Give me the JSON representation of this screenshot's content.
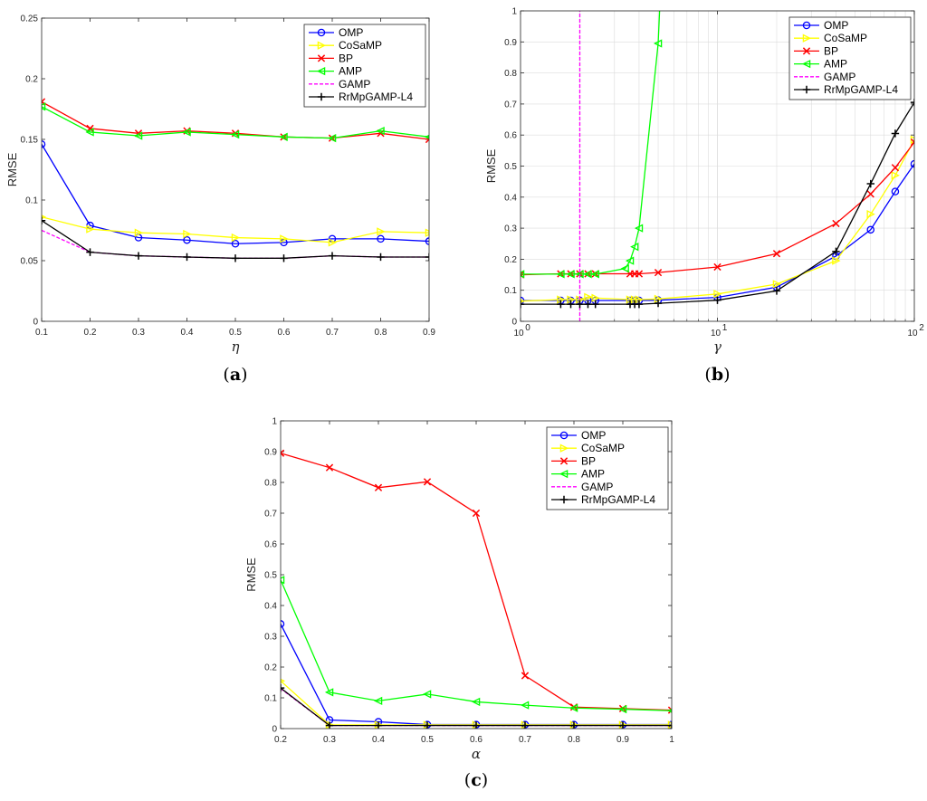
{
  "chart_data": [
    {
      "type": "line",
      "caption": {
        "open": "(",
        "letter": "a",
        "close": ")"
      },
      "xlabel": "η",
      "ylabel": "RMSE",
      "xscale": "linear",
      "xlim": [
        0.1,
        0.9
      ],
      "ylim": [
        0,
        0.25
      ],
      "xticks": [
        0.1,
        0.2,
        0.3,
        0.4,
        0.5,
        0.6,
        0.7,
        0.8,
        0.9
      ],
      "xtick_labels": [
        "0.1",
        "0.2",
        "0.3",
        "0.4",
        "0.5",
        "0.6",
        "0.7",
        "0.8",
        "0.9"
      ],
      "yticks": [
        0,
        0.05,
        0.1,
        0.15,
        0.2,
        0.25
      ],
      "ytick_labels": [
        "0",
        "0.05",
        "0.1",
        "0.15",
        "0.2",
        "0.25"
      ],
      "grid": false,
      "legend_position": "top-right",
      "x": [
        0.1,
        0.2,
        0.3,
        0.4,
        0.5,
        0.6,
        0.7,
        0.8,
        0.9
      ],
      "series": [
        {
          "name": "OMP",
          "color": "#0000ff",
          "marker": "circle",
          "values": [
            0.146,
            0.079,
            0.069,
            0.067,
            0.064,
            0.065,
            0.068,
            0.068,
            0.066
          ]
        },
        {
          "name": "CoSaMP",
          "color": "#ffff00",
          "marker": "triangle-right",
          "values": [
            0.086,
            0.076,
            0.073,
            0.072,
            0.069,
            0.068,
            0.065,
            0.074,
            0.073
          ]
        },
        {
          "name": "BP",
          "color": "#ff0000",
          "marker": "x",
          "values": [
            0.181,
            0.159,
            0.155,
            0.157,
            0.155,
            0.152,
            0.151,
            0.155,
            0.15
          ]
        },
        {
          "name": "AMP",
          "color": "#00ff00",
          "marker": "triangle-left",
          "values": [
            0.177,
            0.156,
            0.153,
            0.156,
            0.154,
            0.152,
            0.151,
            0.157,
            0.152
          ]
        },
        {
          "name": "GAMP",
          "color": "#ff00ff",
          "marker": "none",
          "dash": true,
          "values": [
            0.075,
            0.057,
            0.054,
            0.053,
            0.052,
            0.052,
            0.054,
            0.053,
            0.053
          ]
        },
        {
          "name": "RrMpGAMP-L4",
          "color": "#000000",
          "marker": "plus",
          "values": [
            0.083,
            0.057,
            0.054,
            0.053,
            0.052,
            0.052,
            0.054,
            0.053,
            0.053
          ]
        }
      ]
    },
    {
      "type": "line",
      "caption": {
        "open": "(",
        "letter": "b",
        "close": ")"
      },
      "xlabel": "γ",
      "ylabel": "RMSE",
      "xscale": "log",
      "xlim": [
        1,
        100
      ],
      "ylim": [
        0,
        1
      ],
      "xticks": [
        1,
        10,
        100
      ],
      "xtick_labels": [
        {
          "base": "10",
          "exp": "0"
        },
        {
          "base": "10",
          "exp": "1"
        },
        {
          "base": "10",
          "exp": "2"
        }
      ],
      "yticks": [
        0,
        0.1,
        0.2,
        0.3,
        0.4,
        0.5,
        0.6,
        0.7,
        0.8,
        0.9,
        1
      ],
      "ytick_labels": [
        "0",
        "0.1",
        "0.2",
        "0.3",
        "0.4",
        "0.5",
        "0.6",
        "0.7",
        "0.8",
        "0.9",
        "1"
      ],
      "grid": true,
      "legend_position": "top-right",
      "series": [
        {
          "name": "OMP",
          "color": "#0000ff",
          "marker": "circle",
          "x": [
            1,
            1.6,
            1.8,
            2.0,
            2.2,
            2.4,
            3.6,
            3.8,
            4.0,
            5.0,
            10,
            20,
            40,
            60,
            80,
            100
          ],
          "values": [
            0.067,
            0.067,
            0.067,
            0.067,
            0.067,
            0.067,
            0.067,
            0.067,
            0.067,
            0.068,
            0.077,
            0.11,
            0.21,
            0.295,
            0.418,
            0.507
          ]
        },
        {
          "name": "CoSaMP",
          "color": "#ffff00",
          "marker": "triangle-right",
          "x": [
            1,
            1.6,
            1.8,
            2.0,
            2.2,
            2.4,
            3.6,
            3.8,
            4.0,
            5.0,
            10,
            20,
            40,
            60,
            80,
            100
          ],
          "values": [
            0.065,
            0.07,
            0.07,
            0.07,
            0.078,
            0.075,
            0.07,
            0.07,
            0.07,
            0.072,
            0.088,
            0.12,
            0.195,
            0.345,
            0.47,
            0.585
          ]
        },
        {
          "name": "BP",
          "color": "#ff0000",
          "marker": "x",
          "x": [
            1,
            1.6,
            1.8,
            2.0,
            2.2,
            2.4,
            3.6,
            3.8,
            4.0,
            5.0,
            10,
            20,
            40,
            60,
            80,
            100
          ],
          "values": [
            0.15,
            0.153,
            0.153,
            0.153,
            0.153,
            0.153,
            0.153,
            0.153,
            0.153,
            0.157,
            0.175,
            0.218,
            0.315,
            0.41,
            0.495,
            0.577
          ]
        },
        {
          "name": "AMP",
          "color": "#00ff00",
          "marker": "triangle-left",
          "x": [
            1,
            1.6,
            1.8,
            2.0,
            2.2,
            2.4,
            3.4,
            3.6,
            3.8,
            4.0,
            5.0,
            5.1
          ],
          "values": [
            0.152,
            0.152,
            0.152,
            0.152,
            0.152,
            0.152,
            0.17,
            0.195,
            0.24,
            0.3,
            0.895,
            1.02
          ]
        },
        {
          "name": "GAMP",
          "color": "#ff00ff",
          "marker": "none",
          "dash": true,
          "x": [
            2.0,
            2.0
          ],
          "values": [
            0,
            1
          ]
        },
        {
          "name": "RrMpGAMP-L4",
          "color": "#000000",
          "marker": "plus",
          "x": [
            1,
            1.6,
            1.8,
            2.0,
            2.2,
            2.4,
            3.6,
            3.8,
            4.0,
            5.0,
            10,
            20,
            40,
            60,
            80,
            100
          ],
          "values": [
            0.055,
            0.055,
            0.055,
            0.055,
            0.055,
            0.055,
            0.055,
            0.055,
            0.055,
            0.058,
            0.068,
            0.098,
            0.225,
            0.443,
            0.605,
            0.705
          ]
        }
      ]
    },
    {
      "type": "line",
      "caption": {
        "open": "(",
        "letter": "c",
        "close": ")"
      },
      "xlabel": "α",
      "ylabel": "RMSE",
      "xscale": "linear",
      "xlim": [
        0.2,
        1
      ],
      "ylim": [
        0,
        1
      ],
      "xticks": [
        0.2,
        0.3,
        0.4,
        0.5,
        0.6,
        0.7,
        0.8,
        0.9,
        1
      ],
      "xtick_labels": [
        "0.2",
        "0.3",
        "0.4",
        "0.5",
        "0.6",
        "0.7",
        "0.8",
        "0.9",
        "1"
      ],
      "yticks": [
        0,
        0.1,
        0.2,
        0.3,
        0.4,
        0.5,
        0.6,
        0.7,
        0.8,
        0.9,
        1
      ],
      "ytick_labels": [
        "0",
        "0.1",
        "0.2",
        "0.3",
        "0.4",
        "0.5",
        "0.6",
        "0.7",
        "0.8",
        "0.9",
        "1"
      ],
      "grid": false,
      "legend_position": "top-right",
      "x": [
        0.2,
        0.3,
        0.4,
        0.5,
        0.6,
        0.7,
        0.8,
        0.9,
        1.0
      ],
      "series": [
        {
          "name": "OMP",
          "color": "#0000ff",
          "marker": "circle",
          "values": [
            0.34,
            0.028,
            0.022,
            0.013,
            0.013,
            0.013,
            0.013,
            0.013,
            0.013
          ]
        },
        {
          "name": "CoSaMP",
          "color": "#ffff00",
          "marker": "triangle-right",
          "values": [
            0.155,
            0.012,
            0.012,
            0.012,
            0.012,
            0.012,
            0.012,
            0.012,
            0.012
          ]
        },
        {
          "name": "BP",
          "color": "#ff0000",
          "marker": "x",
          "values": [
            0.895,
            0.848,
            0.783,
            0.802,
            0.7,
            0.172,
            0.07,
            0.065,
            0.06
          ]
        },
        {
          "name": "AMP",
          "color": "#00ff00",
          "marker": "triangle-left",
          "values": [
            0.483,
            0.118,
            0.09,
            0.112,
            0.087,
            0.076,
            0.067,
            0.063,
            0.058
          ]
        },
        {
          "name": "GAMP",
          "color": "#ff00ff",
          "marker": "none",
          "dash": true,
          "values": [
            0.13,
            0.01,
            0.01,
            0.01,
            0.01,
            0.01,
            0.01,
            0.01,
            0.01
          ]
        },
        {
          "name": "RrMpGAMP-L4",
          "color": "#000000",
          "marker": "plus",
          "values": [
            0.132,
            0.01,
            0.01,
            0.01,
            0.01,
            0.01,
            0.01,
            0.01,
            0.01
          ]
        }
      ]
    }
  ]
}
